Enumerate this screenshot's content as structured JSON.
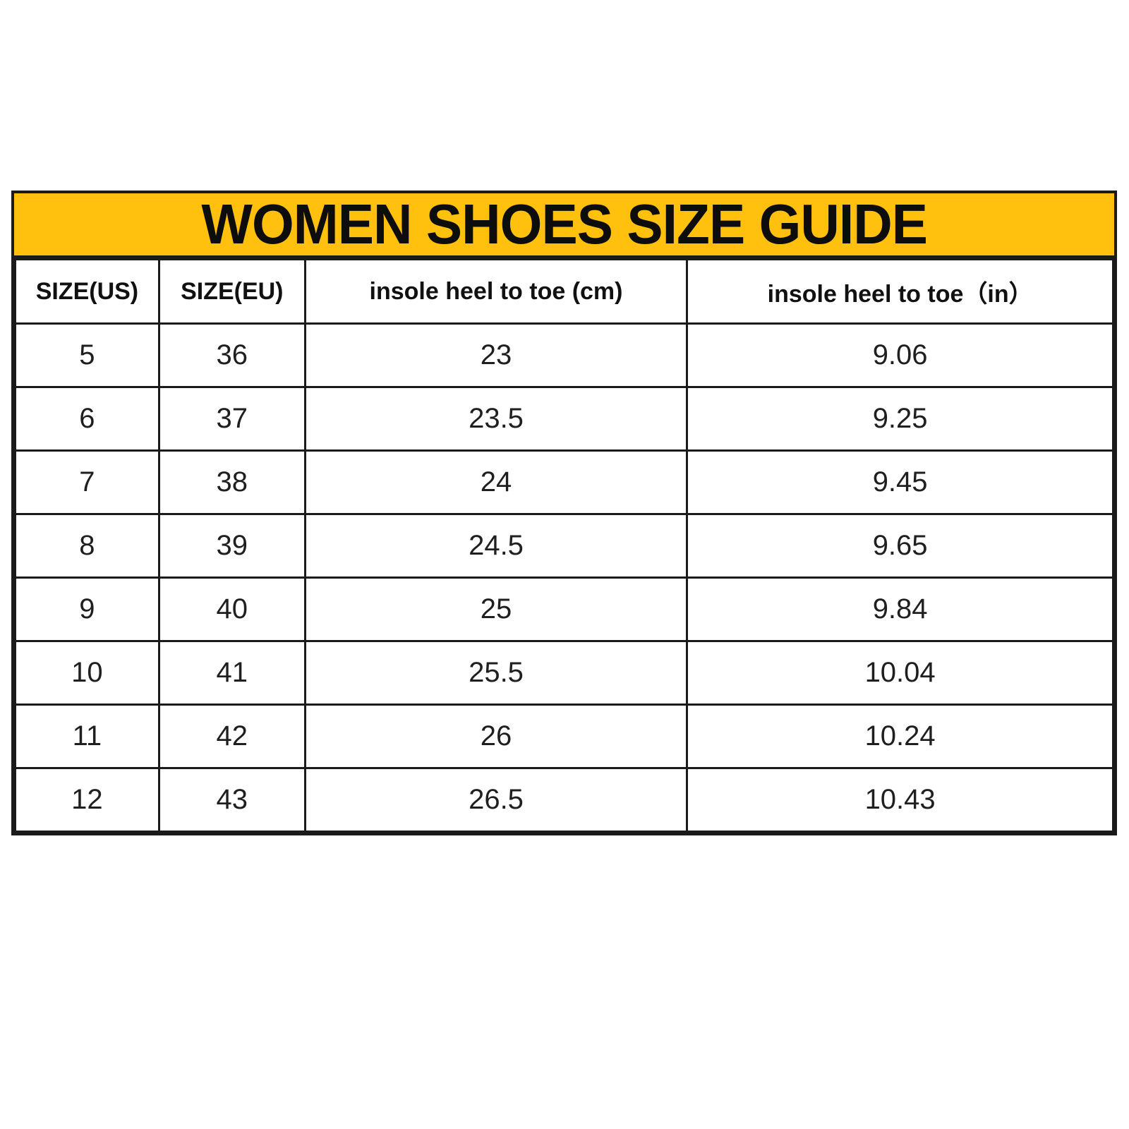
{
  "title": {
    "text": "WOMEN SHOES SIZE GUIDE",
    "bg_color": "#FFC10D",
    "text_color": "#0d0d0d"
  },
  "chart_data": {
    "type": "table",
    "title": "WOMEN SHOES SIZE GUIDE",
    "columns": [
      "SIZE(US)",
      "SIZE(EU)",
      "insole heel to toe (cm)",
      "insole heel to toe（in）"
    ],
    "rows": [
      [
        "5",
        "36",
        "23",
        "9.06"
      ],
      [
        "6",
        "37",
        "23.5",
        "9.25"
      ],
      [
        "7",
        "38",
        "24",
        "9.45"
      ],
      [
        "8",
        "39",
        "24.5",
        "9.65"
      ],
      [
        "9",
        "40",
        "25",
        "9.84"
      ],
      [
        "10",
        "41",
        "25.5",
        "10.04"
      ],
      [
        "11",
        "42",
        "26",
        "10.24"
      ],
      [
        "12",
        "43",
        "26.5",
        "10.43"
      ]
    ],
    "layout": {
      "header_style": "bold",
      "grid": true,
      "title_band_color": "#FFC10D",
      "border_color": "#1b1b1b"
    }
  },
  "colors": {
    "page_background": "#ffffff",
    "accent_yellow": "#FFC10D",
    "border": "#1b1b1b"
  }
}
